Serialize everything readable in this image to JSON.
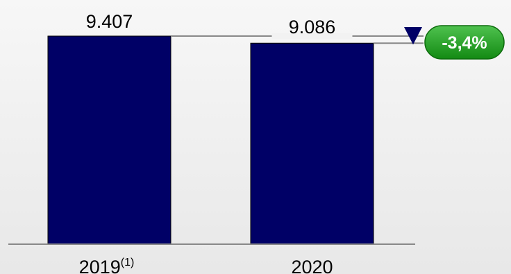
{
  "chart_data": {
    "type": "bar",
    "categories": [
      "2019",
      "2020"
    ],
    "category_notes": [
      "(1)",
      ""
    ],
    "values": [
      9407,
      9086
    ],
    "value_labels": [
      "9.407",
      "9.086"
    ],
    "ylim": [
      0,
      9407
    ],
    "bar_color": "#000066",
    "variation": {
      "label": "-3,4%",
      "direction": "down",
      "badge_color": "#1f9a1f",
      "arrow_color": "#000066"
    }
  }
}
